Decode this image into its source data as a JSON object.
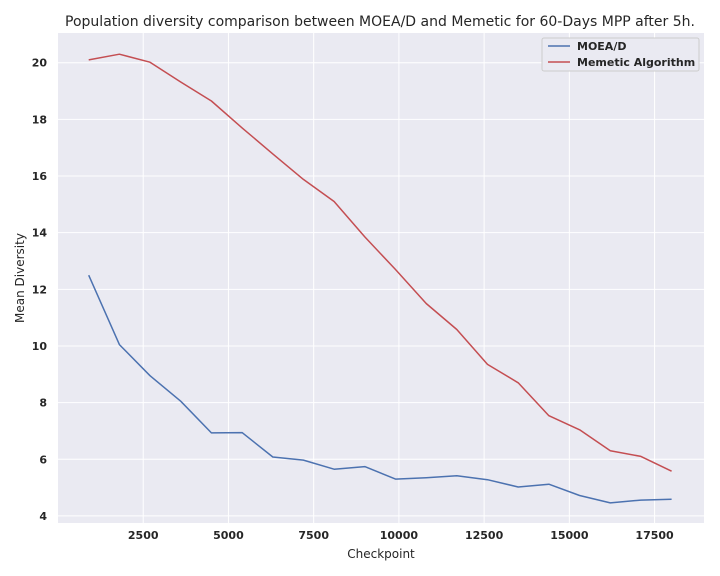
{
  "chart_data": {
    "type": "line",
    "title": "Population diversity comparison between MOEA/D and Memetic for 60-Days MPP after 5h.",
    "xlabel": "Checkpoint",
    "ylabel": "Mean Diversity",
    "xlim": [
      0,
      18950
    ],
    "ylim": [
      3.75,
      21.05
    ],
    "xticks": [
      2500,
      5000,
      7500,
      10000,
      12500,
      15000,
      17500
    ],
    "yticks": [
      4,
      6,
      8,
      10,
      12,
      14,
      16,
      18,
      20
    ],
    "grid": true,
    "legend_position": "top-right",
    "background_color": "#eaeaf2",
    "series": [
      {
        "name": "MOEA/D",
        "color": "#4c72b0",
        "x": [
          900,
          1800,
          2700,
          3600,
          4500,
          5400,
          6300,
          7200,
          8100,
          9000,
          9900,
          10800,
          11700,
          12600,
          13500,
          14400,
          15300,
          16200,
          17100,
          18000
        ],
        "y": [
          12.5,
          10.05,
          8.95,
          8.05,
          6.93,
          6.94,
          6.08,
          5.97,
          5.65,
          5.74,
          5.3,
          5.35,
          5.42,
          5.28,
          5.02,
          5.12,
          4.72,
          4.46,
          4.56,
          4.59
        ]
      },
      {
        "name": "Memetic Algorithm",
        "color": "#c44e52",
        "x": [
          900,
          1800,
          2700,
          3600,
          4500,
          5400,
          6300,
          7200,
          8100,
          9000,
          9900,
          10800,
          11700,
          12600,
          13500,
          14400,
          15300,
          16200,
          17100,
          18000
        ],
        "y": [
          20.1,
          20.3,
          20.02,
          19.32,
          18.65,
          17.7,
          16.78,
          15.88,
          15.1,
          13.85,
          12.7,
          11.5,
          10.58,
          9.35,
          8.7,
          7.54,
          7.04,
          6.3,
          6.1,
          5.58
        ]
      }
    ]
  }
}
